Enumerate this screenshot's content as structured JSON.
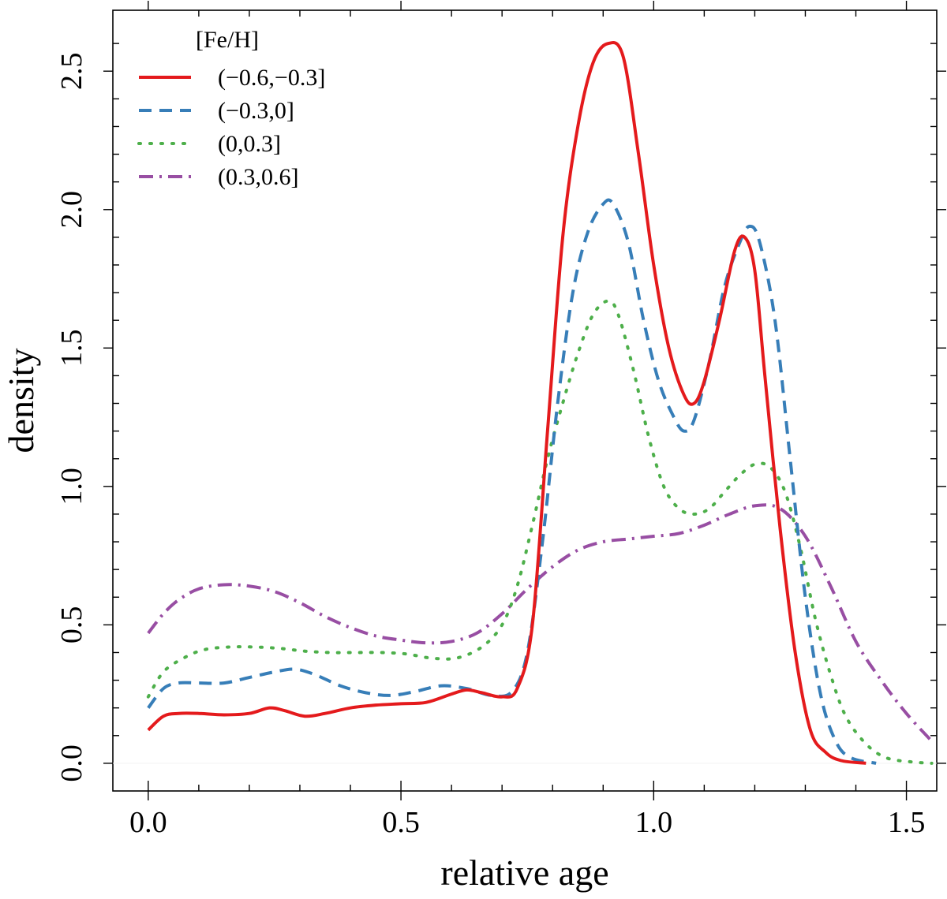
{
  "chart_data": {
    "type": "line",
    "xlabel": "relative age",
    "ylabel": "density",
    "xlim": [
      -0.07,
      1.56
    ],
    "ylim": [
      -0.1,
      2.72
    ],
    "x_ticks": [
      {
        "value": 0.0,
        "label": "0.0"
      },
      {
        "value": 0.5,
        "label": "0.5"
      },
      {
        "value": 1.0,
        "label": "1.0"
      },
      {
        "value": 1.5,
        "label": "1.5"
      }
    ],
    "y_ticks": [
      {
        "value": 0.0,
        "label": "0.0"
      },
      {
        "value": 0.5,
        "label": "0.5"
      },
      {
        "value": 1.0,
        "label": "1.0"
      },
      {
        "value": 1.5,
        "label": "1.5"
      },
      {
        "value": 2.0,
        "label": "2.0"
      },
      {
        "value": 2.5,
        "label": "2.5"
      }
    ],
    "legend": {
      "title": "[Fe/H]",
      "position": "top-left"
    },
    "series": [
      {
        "name": "(−0.6,−0.3]",
        "color": "#e41a1c",
        "dash": "solid",
        "points": [
          [
            0,
            0.12
          ],
          [
            0.03,
            0.17
          ],
          [
            0.06,
            0.18
          ],
          [
            0.1,
            0.18
          ],
          [
            0.15,
            0.175
          ],
          [
            0.2,
            0.18
          ],
          [
            0.24,
            0.2
          ],
          [
            0.27,
            0.19
          ],
          [
            0.31,
            0.17
          ],
          [
            0.35,
            0.18
          ],
          [
            0.4,
            0.2
          ],
          [
            0.45,
            0.21
          ],
          [
            0.5,
            0.215
          ],
          [
            0.55,
            0.22
          ],
          [
            0.6,
            0.25
          ],
          [
            0.63,
            0.265
          ],
          [
            0.66,
            0.255
          ],
          [
            0.7,
            0.24
          ],
          [
            0.73,
            0.27
          ],
          [
            0.76,
            0.5
          ],
          [
            0.79,
            1.2
          ],
          [
            0.82,
            1.9
          ],
          [
            0.85,
            2.3
          ],
          [
            0.88,
            2.53
          ],
          [
            0.91,
            2.6
          ],
          [
            0.94,
            2.55
          ],
          [
            0.97,
            2.2
          ],
          [
            1.0,
            1.8
          ],
          [
            1.03,
            1.5
          ],
          [
            1.06,
            1.33
          ],
          [
            1.08,
            1.3
          ],
          [
            1.1,
            1.38
          ],
          [
            1.13,
            1.6
          ],
          [
            1.16,
            1.85
          ],
          [
            1.18,
            1.9
          ],
          [
            1.2,
            1.78
          ],
          [
            1.22,
            1.4
          ],
          [
            1.25,
            0.85
          ],
          [
            1.28,
            0.4
          ],
          [
            1.31,
            0.12
          ],
          [
            1.34,
            0.04
          ],
          [
            1.37,
            0.01
          ],
          [
            1.42,
            0.0
          ]
        ]
      },
      {
        "name": "(−0.3,0]",
        "color": "#377eb8",
        "dash": "dashed",
        "points": [
          [
            0,
            0.2
          ],
          [
            0.03,
            0.27
          ],
          [
            0.06,
            0.29
          ],
          [
            0.1,
            0.29
          ],
          [
            0.15,
            0.29
          ],
          [
            0.2,
            0.31
          ],
          [
            0.25,
            0.33
          ],
          [
            0.29,
            0.34
          ],
          [
            0.33,
            0.32
          ],
          [
            0.38,
            0.28
          ],
          [
            0.43,
            0.255
          ],
          [
            0.48,
            0.245
          ],
          [
            0.53,
            0.26
          ],
          [
            0.58,
            0.28
          ],
          [
            0.63,
            0.27
          ],
          [
            0.68,
            0.245
          ],
          [
            0.72,
            0.26
          ],
          [
            0.75,
            0.4
          ],
          [
            0.78,
            0.8
          ],
          [
            0.81,
            1.3
          ],
          [
            0.84,
            1.7
          ],
          [
            0.87,
            1.92
          ],
          [
            0.9,
            2.02
          ],
          [
            0.92,
            2.02
          ],
          [
            0.95,
            1.88
          ],
          [
            0.98,
            1.6
          ],
          [
            1.01,
            1.38
          ],
          [
            1.04,
            1.25
          ],
          [
            1.06,
            1.2
          ],
          [
            1.08,
            1.24
          ],
          [
            1.11,
            1.45
          ],
          [
            1.14,
            1.72
          ],
          [
            1.17,
            1.88
          ],
          [
            1.19,
            1.94
          ],
          [
            1.21,
            1.88
          ],
          [
            1.24,
            1.6
          ],
          [
            1.27,
            1.1
          ],
          [
            1.3,
            0.6
          ],
          [
            1.33,
            0.25
          ],
          [
            1.36,
            0.08
          ],
          [
            1.39,
            0.02
          ],
          [
            1.44,
            0.0
          ]
        ]
      },
      {
        "name": "(0,0.3]",
        "color": "#4daf4a",
        "dash": "dotted",
        "points": [
          [
            0,
            0.24
          ],
          [
            0.03,
            0.33
          ],
          [
            0.07,
            0.38
          ],
          [
            0.11,
            0.41
          ],
          [
            0.16,
            0.42
          ],
          [
            0.21,
            0.42
          ],
          [
            0.26,
            0.415
          ],
          [
            0.31,
            0.405
          ],
          [
            0.36,
            0.4
          ],
          [
            0.41,
            0.4
          ],
          [
            0.46,
            0.4
          ],
          [
            0.51,
            0.395
          ],
          [
            0.56,
            0.38
          ],
          [
            0.61,
            0.38
          ],
          [
            0.66,
            0.42
          ],
          [
            0.7,
            0.5
          ],
          [
            0.73,
            0.64
          ],
          [
            0.76,
            0.86
          ],
          [
            0.79,
            1.1
          ],
          [
            0.82,
            1.3
          ],
          [
            0.85,
            1.48
          ],
          [
            0.88,
            1.62
          ],
          [
            0.91,
            1.67
          ],
          [
            0.93,
            1.62
          ],
          [
            0.96,
            1.42
          ],
          [
            0.99,
            1.18
          ],
          [
            1.02,
            1.0
          ],
          [
            1.05,
            0.92
          ],
          [
            1.08,
            0.9
          ],
          [
            1.11,
            0.92
          ],
          [
            1.14,
            0.98
          ],
          [
            1.17,
            1.04
          ],
          [
            1.2,
            1.08
          ],
          [
            1.23,
            1.07
          ],
          [
            1.26,
            0.98
          ],
          [
            1.29,
            0.78
          ],
          [
            1.32,
            0.52
          ],
          [
            1.35,
            0.32
          ],
          [
            1.38,
            0.17
          ],
          [
            1.42,
            0.07
          ],
          [
            1.46,
            0.02
          ],
          [
            1.51,
            0.005
          ],
          [
            1.55,
            0.0
          ]
        ]
      },
      {
        "name": "(0.3,0.6]",
        "color": "#984ea3",
        "dash": "dashdot",
        "points": [
          [
            0,
            0.47
          ],
          [
            0.03,
            0.54
          ],
          [
            0.06,
            0.59
          ],
          [
            0.1,
            0.63
          ],
          [
            0.15,
            0.645
          ],
          [
            0.2,
            0.64
          ],
          [
            0.25,
            0.62
          ],
          [
            0.3,
            0.58
          ],
          [
            0.35,
            0.53
          ],
          [
            0.4,
            0.49
          ],
          [
            0.45,
            0.46
          ],
          [
            0.5,
            0.445
          ],
          [
            0.55,
            0.435
          ],
          [
            0.6,
            0.44
          ],
          [
            0.65,
            0.47
          ],
          [
            0.7,
            0.54
          ],
          [
            0.75,
            0.63
          ],
          [
            0.8,
            0.71
          ],
          [
            0.85,
            0.77
          ],
          [
            0.9,
            0.8
          ],
          [
            0.95,
            0.81
          ],
          [
            1.0,
            0.82
          ],
          [
            1.05,
            0.83
          ],
          [
            1.1,
            0.86
          ],
          [
            1.15,
            0.9
          ],
          [
            1.2,
            0.93
          ],
          [
            1.25,
            0.92
          ],
          [
            1.3,
            0.82
          ],
          [
            1.35,
            0.64
          ],
          [
            1.4,
            0.44
          ],
          [
            1.45,
            0.3
          ],
          [
            1.5,
            0.18
          ],
          [
            1.55,
            0.08
          ]
        ]
      }
    ]
  }
}
